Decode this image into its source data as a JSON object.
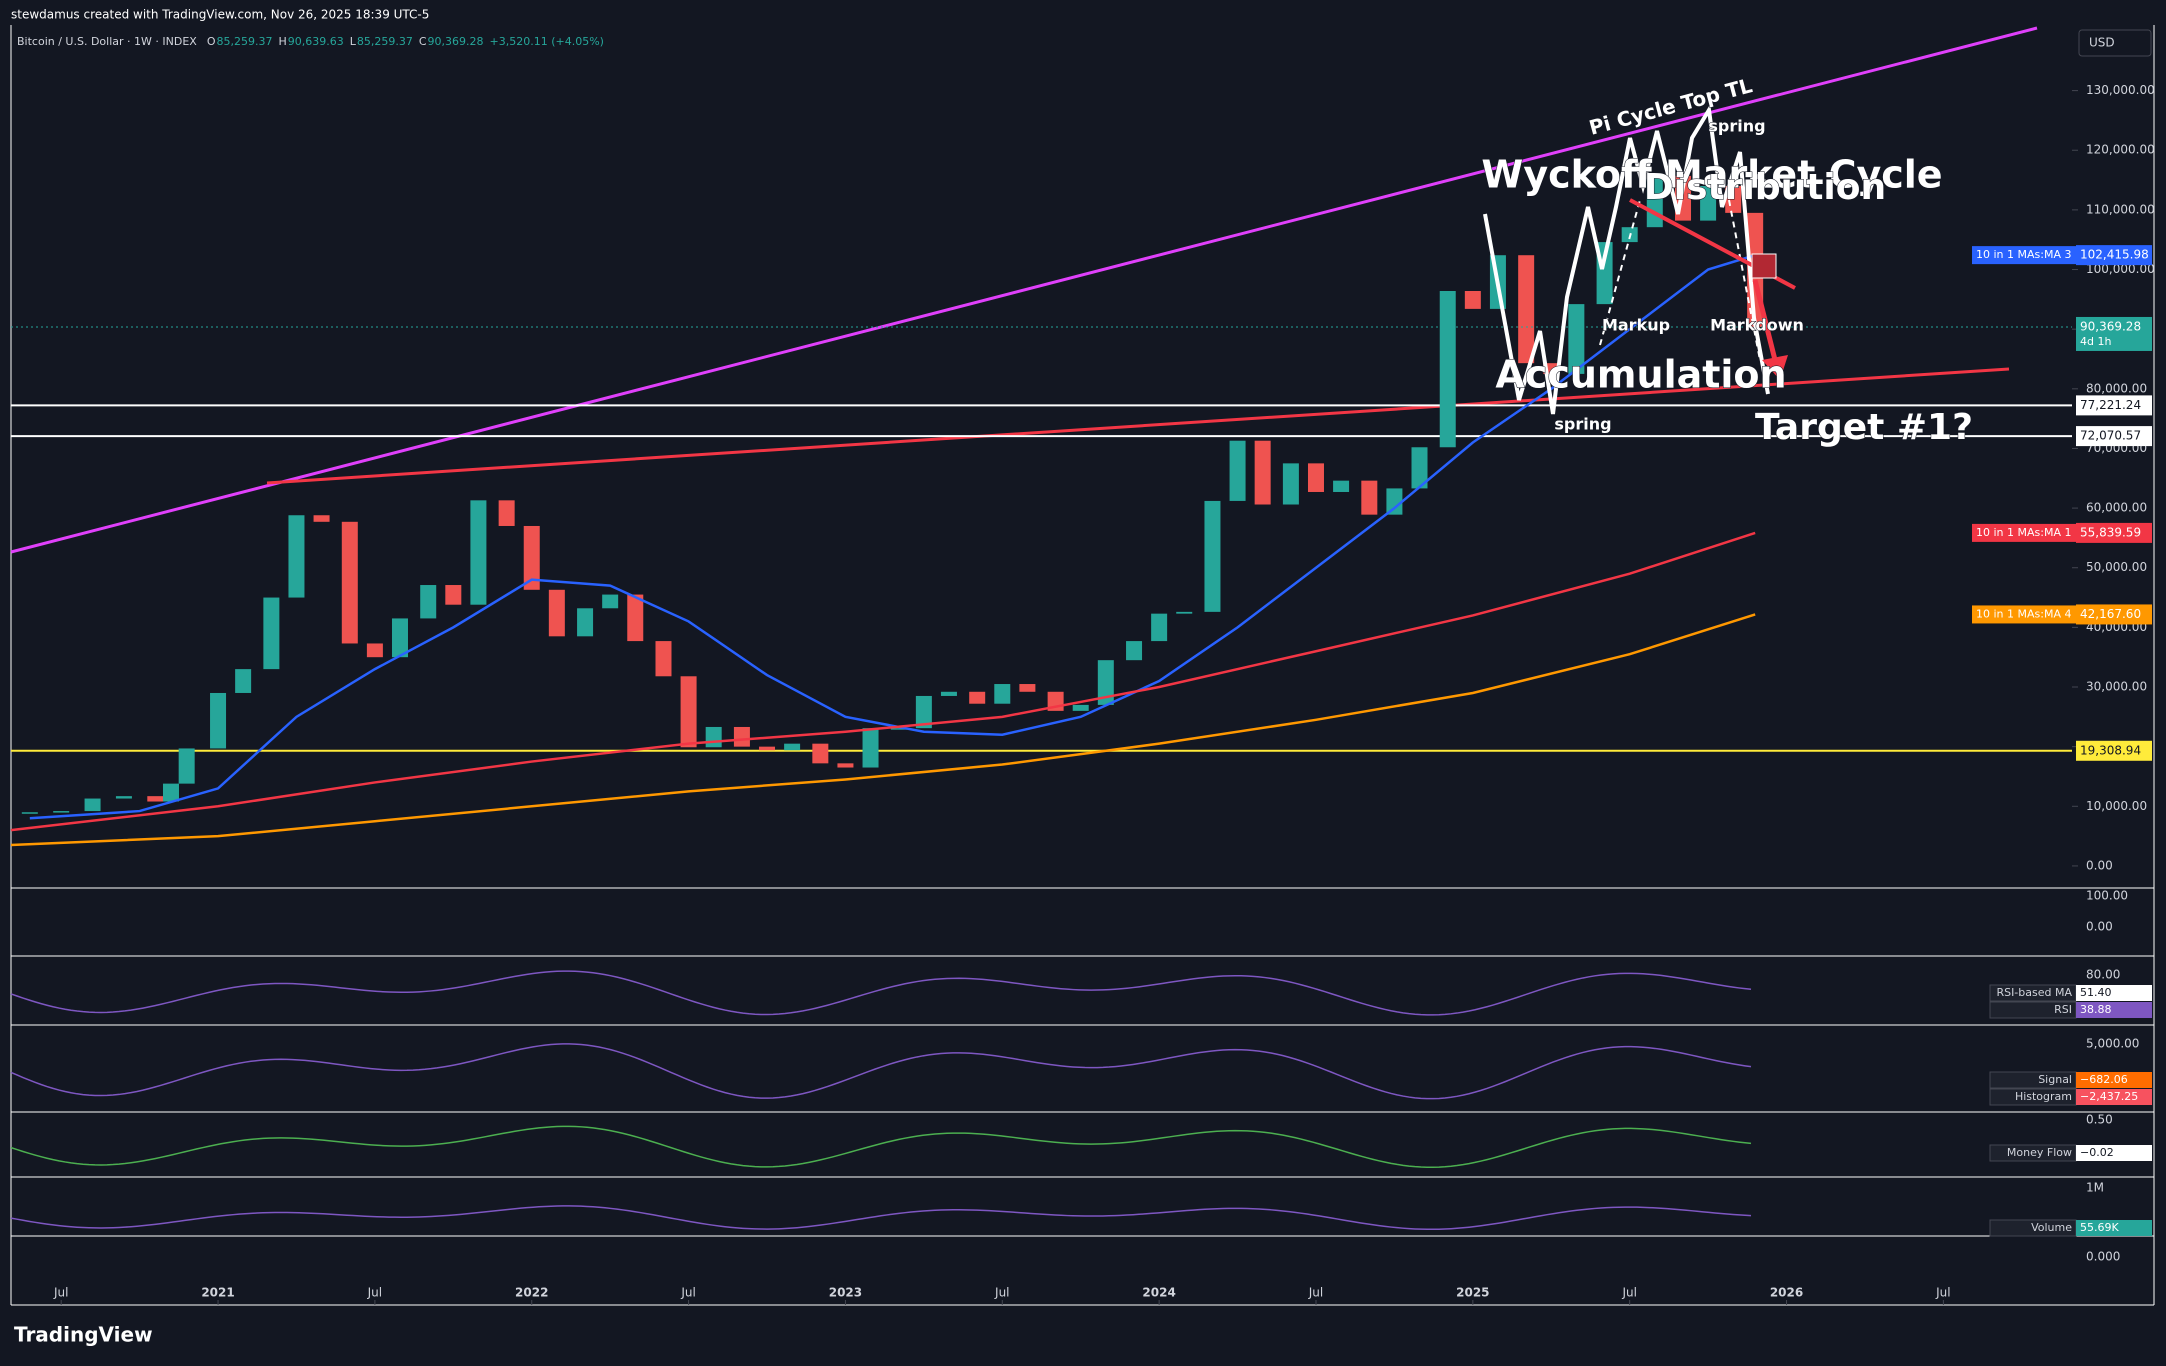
{
  "header": {
    "author_line": "stewdamus created with TradingView.com, Nov 26, 2025 18:39 UTC-5",
    "symbol": "Bitcoin / U.S. Dollar · 1W · INDEX",
    "ohlc": [
      {
        "label": "O",
        "value": "85,259.37"
      },
      {
        "label": "H",
        "value": "90,639.63"
      },
      {
        "label": "L",
        "value": "85,259.37"
      },
      {
        "label": "C",
        "value": "90,369.28"
      }
    ],
    "change": "+3,520.11 (+4.05%)",
    "currency": "USD"
  },
  "chart_data": {
    "type": "candlestick",
    "x": [
      2020.4,
      2020.5,
      2020.6,
      2020.7,
      2020.8,
      2020.85,
      2020.9,
      2021.0,
      2021.08,
      2021.17,
      2021.25,
      2021.33,
      2021.42,
      2021.5,
      2021.58,
      2021.67,
      2021.75,
      2021.83,
      2021.92,
      2022.0,
      2022.08,
      2022.17,
      2022.25,
      2022.33,
      2022.42,
      2022.5,
      2022.58,
      2022.67,
      2022.75,
      2022.83,
      2022.92,
      2023.0,
      2023.08,
      2023.17,
      2023.25,
      2023.33,
      2023.42,
      2023.5,
      2023.58,
      2023.67,
      2023.75,
      2023.83,
      2023.92,
      2024.0,
      2024.08,
      2024.17,
      2024.25,
      2024.33,
      2024.42,
      2024.5,
      2024.58,
      2024.67,
      2024.75,
      2024.83,
      2024.92,
      2025.0,
      2025.08,
      2025.17,
      2025.25,
      2025.33,
      2025.42,
      2025.5,
      2025.58,
      2025.67,
      2025.75,
      2025.83,
      2025.9
    ],
    "values": [
      9000,
      9200,
      11300,
      11700,
      10800,
      13800,
      19700,
      29000,
      33000,
      45000,
      58800,
      57700,
      37300,
      35000,
      41500,
      47100,
      43800,
      61300,
      57000,
      46300,
      38500,
      43200,
      45500,
      37700,
      31800,
      19900,
      23300,
      20000,
      19400,
      20500,
      17200,
      16500,
      23100,
      23100,
      28500,
      29200,
      27200,
      30500,
      29200,
      26000,
      27000,
      34500,
      37700,
      42300,
      42600,
      61200,
      71300,
      60600,
      67500,
      62700,
      64600,
      58900,
      63300,
      70200,
      96400,
      93400,
      102400,
      84300,
      82500,
      94200,
      104600,
      107100,
      115700,
      108200,
      114000,
      109500,
      90369.28
    ],
    "xlim": [
      2020.34,
      2026.91
    ],
    "ylim": [
      -3700,
      141000
    ],
    "xticks": [
      {
        "value": 2020.5,
        "label": "Jul"
      },
      2021,
      {
        "value": 2021.5,
        "label": "Jul"
      },
      2022,
      {
        "value": 2022.5,
        "label": "Jul"
      },
      2023,
      {
        "value": 2023.5,
        "label": "Jul"
      },
      2024,
      {
        "value": 2024.5,
        "label": "Jul"
      },
      2025,
      {
        "value": 2025.5,
        "label": "Jul"
      },
      2026,
      {
        "value": 2026.5,
        "label": "Jul"
      }
    ],
    "yticks": [
      {
        "value": 0,
        "label": "0.00"
      },
      {
        "value": 10000,
        "label": "10,000.00"
      },
      {
        "value": 20000,
        "label": "20,000.00"
      },
      {
        "value": 30000,
        "label": "30,000.00"
      },
      {
        "value": 40000,
        "label": "40,000.00"
      },
      {
        "value": 50000,
        "label": "50,000.00"
      },
      {
        "value": 60000,
        "label": "60,000.00"
      },
      {
        "value": 70000,
        "label": "70,000.00"
      },
      {
        "value": 80000,
        "label": "80,000.00"
      },
      {
        "value": 90000,
        "label": "90,000.00"
      },
      {
        "value": 100000,
        "label": "100,000.00"
      },
      {
        "value": 110000,
        "label": "110,000.00"
      },
      {
        "value": 120000,
        "label": "120,000.00"
      },
      {
        "value": 130000,
        "label": "130,000.00"
      }
    ],
    "up_color": "#26a69a",
    "down_color": "#ef5350",
    "ma_series": [
      {
        "name": "10 in 1 MAs:MA 3",
        "color": "#2962ff",
        "badge": "102,415.98",
        "x": [
          2020.4,
          2020.75,
          2021.0,
          2021.25,
          2021.5,
          2021.75,
          2022.0,
          2022.25,
          2022.5,
          2022.75,
          2023.0,
          2023.25,
          2023.5,
          2023.75,
          2024.0,
          2024.25,
          2024.5,
          2024.75,
          2025.0,
          2025.25,
          2025.5,
          2025.75,
          2025.9
        ],
        "values": [
          8000,
          9200,
          13000,
          25000,
          33000,
          40000,
          48000,
          47000,
          41000,
          32000,
          25000,
          22500,
          22000,
          25000,
          31000,
          40000,
          50000,
          60000,
          71000,
          80000,
          90000,
          100000,
          102415.98
        ]
      },
      {
        "name": "10 in 1 MAs:MA 1",
        "color": "#f23645",
        "badge": "55,839.59",
        "x": [
          2020.34,
          2021.0,
          2021.5,
          2022.0,
          2022.5,
          2023.0,
          2023.5,
          2024.0,
          2024.5,
          2025.0,
          2025.5,
          2025.9
        ],
        "values": [
          6000,
          10000,
          14000,
          17500,
          20500,
          22500,
          25000,
          30000,
          36000,
          42000,
          49000,
          55839.59
        ]
      },
      {
        "name": "10 in 1 MAs:MA 4",
        "color": "#ff9800",
        "badge": "42,167.60",
        "x": [
          2020.34,
          2021.0,
          2021.5,
          2022.0,
          2022.5,
          2023.0,
          2023.5,
          2024.0,
          2024.5,
          2025.0,
          2025.5,
          2025.9
        ],
        "values": [
          3500,
          5000,
          7500,
          10000,
          12500,
          14500,
          17000,
          20500,
          24500,
          29000,
          35500,
          42167.6
        ]
      }
    ],
    "levels": [
      {
        "value": 77221.24,
        "label": "77,221.24",
        "color": "#ffffff"
      },
      {
        "value": 72070.57,
        "label": "72,070.57",
        "color": "#ffffff"
      },
      {
        "value": 19308.94,
        "label": "19,308.94",
        "color": "#ffeb3b"
      }
    ],
    "last_price": {
      "value": 90369.28,
      "label": "90,369.28",
      "countdown": "4d 1h"
    }
  },
  "annotations": [
    "Pi Cycle Top TL",
    "spring",
    "Wyckoff Market Cycle",
    "Distribution",
    "Markup",
    "Markdown",
    "Accumulation",
    "spring",
    "Target #1?"
  ],
  "panes": [
    {
      "ticks": [
        "100.00",
        "0.00"
      ],
      "badges": []
    },
    {
      "ticks": [
        "80.00"
      ],
      "badges": [
        {
          "name": "RSI-based MA",
          "value": "51.40"
        },
        {
          "name": "RSI",
          "value": "38.88"
        }
      ]
    },
    {
      "ticks": [
        "5,000.00"
      ],
      "badges": [
        {
          "name": "Signal",
          "value": "−682.06"
        },
        {
          "name": "Histogram",
          "value": "−2,437.25"
        }
      ]
    },
    {
      "ticks": [
        "0.50"
      ],
      "badges": [
        {
          "name": "Money Flow",
          "value": "−0.02"
        }
      ]
    },
    {
      "ticks": [
        "1M",
        "0.000"
      ],
      "badges": [
        {
          "name": "Volume",
          "value": "55.69K"
        }
      ]
    }
  ],
  "footer": {
    "brand": "TradingView"
  }
}
